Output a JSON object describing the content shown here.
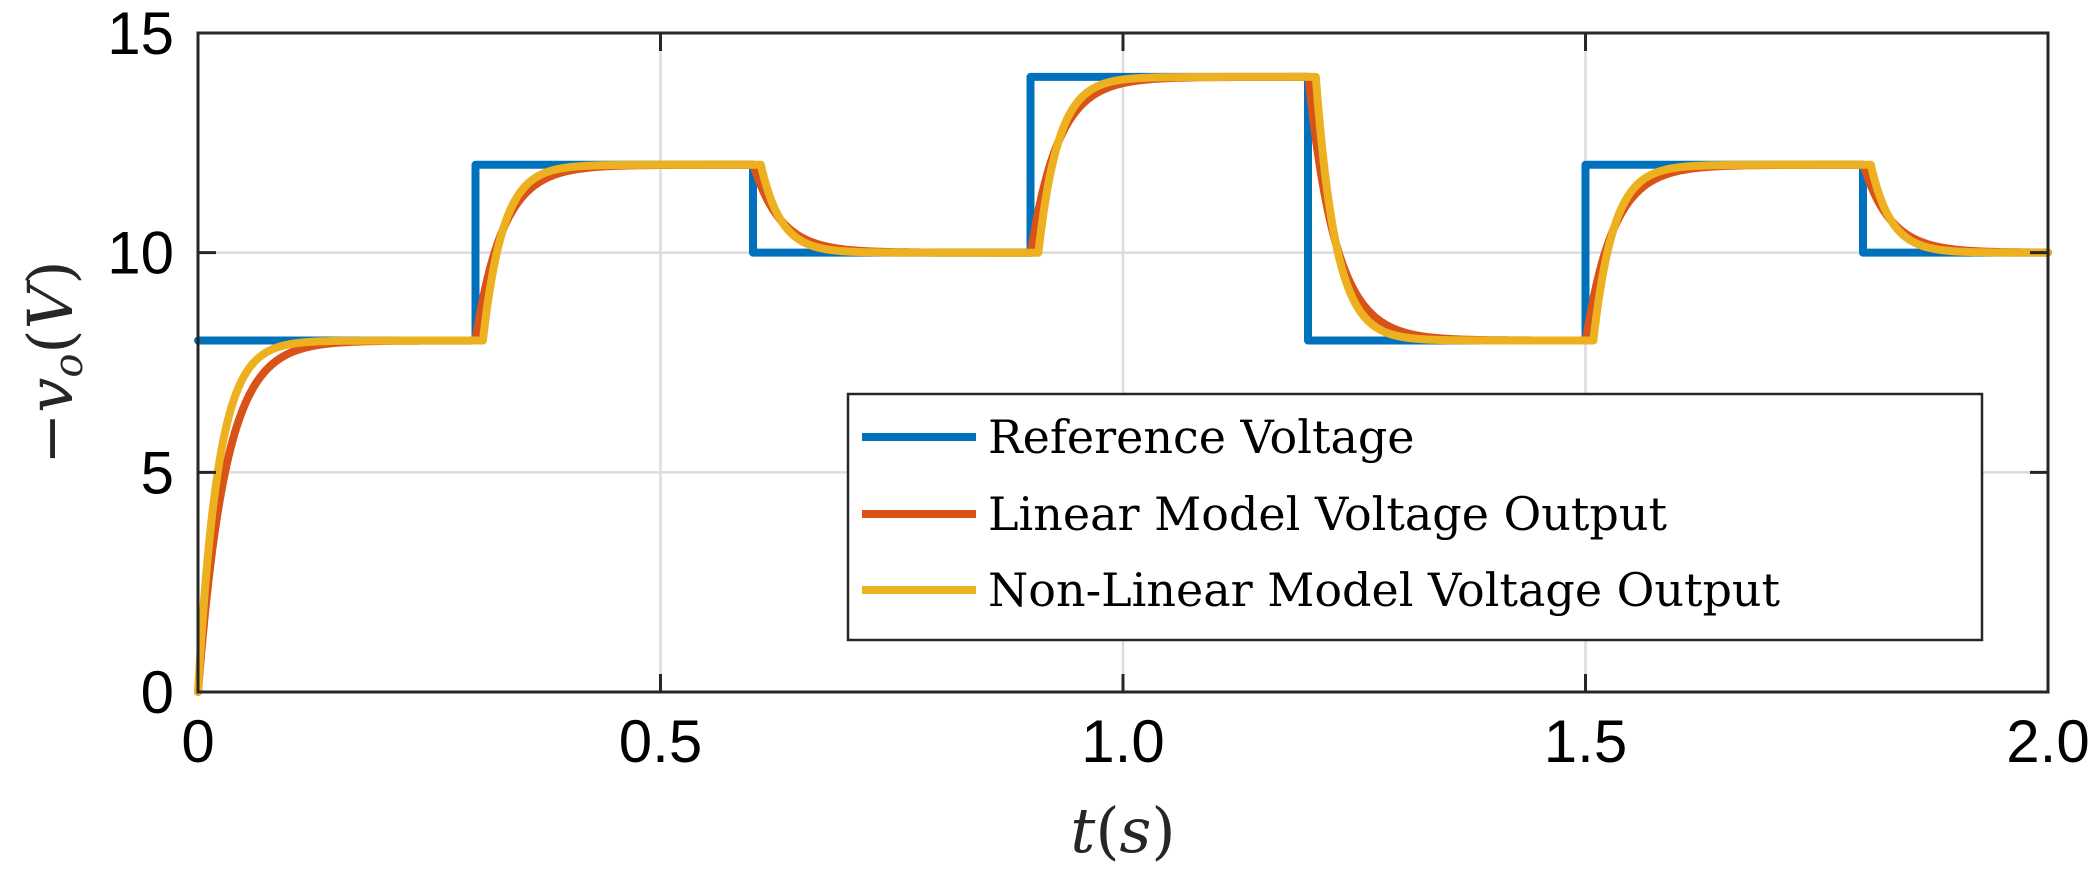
{
  "chart_data": {
    "type": "line",
    "title": "",
    "xlabel_var": "t",
    "xlabel_unit": "s",
    "ylabel_prefix": "−",
    "ylabel_var": "v",
    "ylabel_sub": "o",
    "ylabel_unit": "V",
    "xlim": [
      0,
      2.0
    ],
    "ylim": [
      0,
      15
    ],
    "x_ticks": [
      0,
      0.5,
      1.0,
      1.5,
      2.0
    ],
    "x_tick_labels": [
      "0",
      "0.5",
      "1.0",
      "1.5",
      "2.0"
    ],
    "y_ticks": [
      0,
      5,
      10,
      15
    ],
    "y_tick_labels": [
      "0",
      "5",
      "10",
      "15"
    ],
    "grid": true,
    "legend_position": "lower-right",
    "series": [
      {
        "name": "Reference Voltage",
        "color": "#0072BD",
        "kind": "step",
        "steps": [
          {
            "t_start": 0.0,
            "t_end": 0.3,
            "value": 8
          },
          {
            "t_start": 0.3,
            "t_end": 0.6,
            "value": 12
          },
          {
            "t_start": 0.6,
            "t_end": 0.9,
            "value": 10
          },
          {
            "t_start": 0.9,
            "t_end": 1.2,
            "value": 14
          },
          {
            "t_start": 1.2,
            "t_end": 1.5,
            "value": 8
          },
          {
            "t_start": 1.5,
            "t_end": 1.8,
            "value": 12
          },
          {
            "t_start": 1.8,
            "t_end": 2.0,
            "value": 10
          }
        ]
      },
      {
        "name": "Linear Model Voltage Output",
        "color": "#D95319",
        "kind": "first-order-response",
        "initial_value": 0,
        "time_constant_s": 0.03
      },
      {
        "name": "Non-Linear Model Voltage Output",
        "color": "#EDB120",
        "kind": "first-order-response",
        "initial_value": 0,
        "time_constant_s": 0.022,
        "dead_time_s": 0.008
      }
    ]
  }
}
